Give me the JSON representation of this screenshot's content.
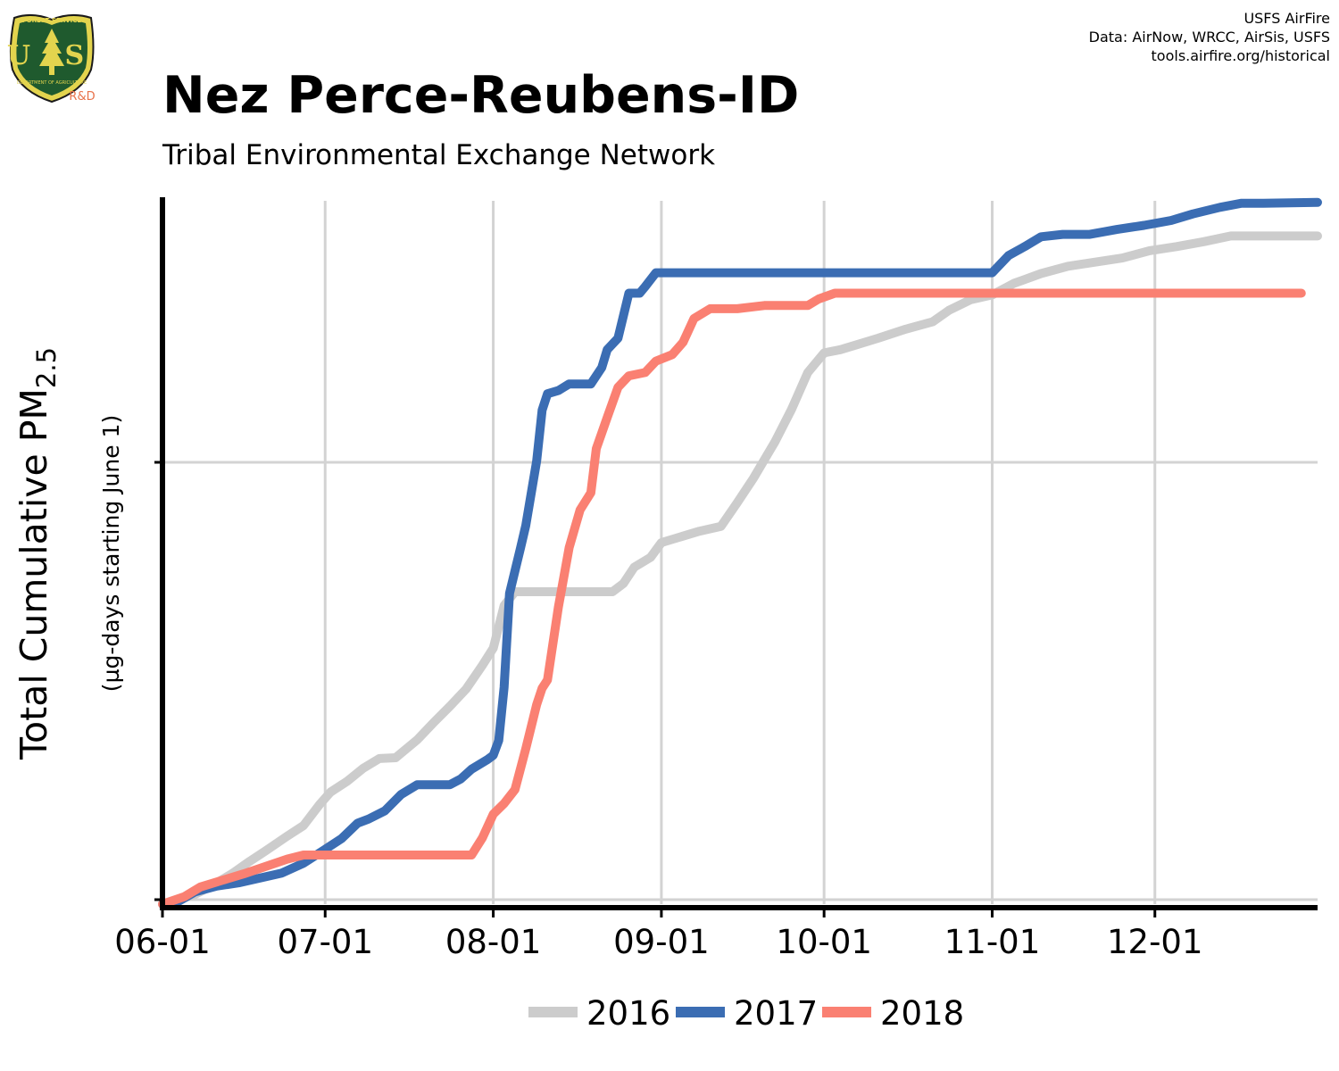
{
  "header": {
    "title": "Nez Perce-Reubens-ID",
    "subtitle": "Tribal Environmental Exchange Network",
    "credits": [
      "USFS AirFire",
      "Data: AirNow, WRCC, AirSis, USFS",
      "tools.airfire.org/historical"
    ]
  },
  "logo": {
    "top_text": "FOREST SERVICE",
    "letters": "U S",
    "bottom_text": "DEPARTMENT OF AGRICULTURE",
    "tag": "R&D"
  },
  "chart_data": {
    "type": "line",
    "xlabel": "",
    "ylabel_main": "Total Cumulative PM",
    "ylabel_sub_script": "2.5",
    "ylabel_units": "(µg-days starting June 1)",
    "x_ticks": [
      "06-01",
      "07-01",
      "08-01",
      "09-01",
      "10-01",
      "11-01",
      "12-01"
    ],
    "x_tick_days": [
      0,
      30,
      61,
      92,
      122,
      153,
      183
    ],
    "xlim_days": [
      0,
      213
    ],
    "y_tick_count": 2,
    "grid": true,
    "legend_position": "bottom",
    "colors": {
      "2016": "#cccccc",
      "2017": "#3b6db3",
      "2018": "#fa8072"
    },
    "series": [
      {
        "name": "2016",
        "color": "#cccccc",
        "points": [
          [
            "06-01",
            0
          ],
          [
            "06-04",
            0.55
          ],
          [
            "06-07",
            1.2
          ],
          [
            "06-10",
            2.2
          ],
          [
            "06-14",
            3.8
          ],
          [
            "06-17",
            5.2
          ],
          [
            "06-20",
            6.5
          ],
          [
            "06-24",
            8.3
          ],
          [
            "06-27",
            9.6
          ],
          [
            "06-30",
            12.2
          ],
          [
            "07-02",
            13.7
          ],
          [
            "07-05",
            15.0
          ],
          [
            "07-08",
            16.6
          ],
          [
            "07-11",
            17.8
          ],
          [
            "07-14",
            17.9
          ],
          [
            "07-18",
            20.1
          ],
          [
            "07-21",
            22.2
          ],
          [
            "07-24",
            24.2
          ],
          [
            "07-27",
            26.3
          ],
          [
            "07-30",
            29.2
          ],
          [
            "08-01",
            31.3
          ],
          [
            "08-03",
            36.5
          ],
          [
            "08-05",
            38.2
          ],
          [
            "08-09",
            38.2
          ],
          [
            "08-14",
            38.2
          ],
          [
            "08-19",
            38.2
          ],
          [
            "08-23",
            38.2
          ],
          [
            "08-25",
            39.2
          ],
          [
            "08-27",
            41.2
          ],
          [
            "08-30",
            42.4
          ],
          [
            "09-01",
            44.2
          ],
          [
            "09-04",
            44.8
          ],
          [
            "09-08",
            45.6
          ],
          [
            "09-12",
            46.2
          ],
          [
            "09-15",
            49.1
          ],
          [
            "09-18",
            52.1
          ],
          [
            "09-22",
            56.6
          ],
          [
            "09-25",
            60.5
          ],
          [
            "09-28",
            65.0
          ],
          [
            "10-01",
            67.4
          ],
          [
            "10-04",
            67.8
          ],
          [
            "10-07",
            68.4
          ],
          [
            "10-11",
            69.2
          ],
          [
            "10-16",
            70.3
          ],
          [
            "10-21",
            71.2
          ],
          [
            "10-24",
            72.6
          ],
          [
            "10-28",
            73.9
          ],
          [
            "11-01",
            74.5
          ],
          [
            "11-05",
            75.9
          ],
          [
            "11-10",
            77.1
          ],
          [
            "11-15",
            78.0
          ],
          [
            "11-20",
            78.5
          ],
          [
            "11-25",
            79.0
          ],
          [
            "11-30",
            79.9
          ],
          [
            "12-05",
            80.4
          ],
          [
            "12-10",
            81.0
          ],
          [
            "12-15",
            81.7
          ],
          [
            "12-21",
            81.7
          ],
          [
            "12-31",
            81.7
          ]
        ]
      },
      {
        "name": "2017",
        "color": "#3b6db3",
        "points": [
          [
            "06-01",
            0
          ],
          [
            "06-04",
            0.35
          ],
          [
            "06-07",
            1.5
          ],
          [
            "06-11",
            2.2
          ],
          [
            "06-15",
            2.6
          ],
          [
            "06-19",
            3.2
          ],
          [
            "06-23",
            3.8
          ],
          [
            "06-27",
            5.0
          ],
          [
            "07-01",
            6.7
          ],
          [
            "07-04",
            8.0
          ],
          [
            "07-07",
            9.9
          ],
          [
            "07-09",
            10.4
          ],
          [
            "07-12",
            11.4
          ],
          [
            "07-15",
            13.4
          ],
          [
            "07-18",
            14.6
          ],
          [
            "07-21",
            14.6
          ],
          [
            "07-24",
            14.6
          ],
          [
            "07-26",
            15.3
          ],
          [
            "07-28",
            16.5
          ],
          [
            "07-31",
            17.7
          ],
          [
            "08-01",
            18.2
          ],
          [
            "08-02",
            20.0
          ],
          [
            "08-03",
            26.5
          ],
          [
            "08-04",
            38.0
          ],
          [
            "08-06",
            43.5
          ],
          [
            "08-07",
            46.3
          ],
          [
            "08-09",
            54.2
          ],
          [
            "08-10",
            60.4
          ],
          [
            "08-11",
            62.4
          ],
          [
            "08-13",
            62.8
          ],
          [
            "08-15",
            63.6
          ],
          [
            "08-19",
            63.6
          ],
          [
            "08-21",
            65.6
          ],
          [
            "08-22",
            67.8
          ],
          [
            "08-24",
            69.2
          ],
          [
            "08-26",
            74.7
          ],
          [
            "08-28",
            74.7
          ],
          [
            "08-29",
            75.5
          ],
          [
            "08-31",
            77.2
          ],
          [
            "09-05",
            77.2
          ],
          [
            "09-15",
            77.2
          ],
          [
            "09-25",
            77.2
          ],
          [
            "10-05",
            77.2
          ],
          [
            "10-15",
            77.2
          ],
          [
            "10-25",
            77.2
          ],
          [
            "11-01",
            77.2
          ],
          [
            "11-04",
            79.3
          ],
          [
            "11-07",
            80.4
          ],
          [
            "11-10",
            81.6
          ],
          [
            "11-14",
            81.9
          ],
          [
            "11-19",
            81.9
          ],
          [
            "11-24",
            82.5
          ],
          [
            "11-29",
            83.0
          ],
          [
            "12-04",
            83.6
          ],
          [
            "12-08",
            84.4
          ],
          [
            "12-13",
            85.2
          ],
          [
            "12-17",
            85.7
          ],
          [
            "12-21",
            85.7
          ],
          [
            "12-31",
            85.8
          ]
        ]
      },
      {
        "name": "2018",
        "color": "#fa8072",
        "points": [
          [
            "06-01",
            0
          ],
          [
            "06-05",
            0.9
          ],
          [
            "06-08",
            2.1
          ],
          [
            "06-12",
            2.9
          ],
          [
            "06-16",
            3.7
          ],
          [
            "06-20",
            4.6
          ],
          [
            "06-24",
            5.5
          ],
          [
            "06-27",
            6.0
          ],
          [
            "07-01",
            6.0
          ],
          [
            "07-05",
            6.0
          ],
          [
            "07-15",
            6.0
          ],
          [
            "07-25",
            6.0
          ],
          [
            "07-28",
            6.0
          ],
          [
            "07-30",
            8.1
          ],
          [
            "08-01",
            11.0
          ],
          [
            "08-03",
            12.3
          ],
          [
            "08-05",
            14.0
          ],
          [
            "08-07",
            19.0
          ],
          [
            "08-09",
            24.4
          ],
          [
            "08-10",
            26.4
          ],
          [
            "08-11",
            27.4
          ],
          [
            "08-13",
            36.3
          ],
          [
            "08-15",
            43.6
          ],
          [
            "08-17",
            48.2
          ],
          [
            "08-19",
            50.3
          ],
          [
            "08-20",
            55.7
          ],
          [
            "08-22",
            59.5
          ],
          [
            "08-24",
            63.2
          ],
          [
            "08-26",
            64.6
          ],
          [
            "08-29",
            65.0
          ],
          [
            "08-31",
            66.4
          ],
          [
            "09-03",
            67.2
          ],
          [
            "09-05",
            68.7
          ],
          [
            "09-07",
            71.6
          ],
          [
            "09-10",
            72.8
          ],
          [
            "09-15",
            72.8
          ],
          [
            "09-20",
            73.2
          ],
          [
            "09-25",
            73.2
          ],
          [
            "09-28",
            73.2
          ],
          [
            "09-30",
            74.0
          ],
          [
            "10-03",
            74.7
          ],
          [
            "10-08",
            74.7
          ],
          [
            "10-18",
            74.7
          ],
          [
            "10-28",
            74.7
          ],
          [
            "11-07",
            74.7
          ],
          [
            "11-17",
            74.7
          ],
          [
            "11-27",
            74.7
          ],
          [
            "12-07",
            74.7
          ],
          [
            "12-17",
            74.7
          ],
          [
            "12-28",
            74.7
          ]
        ]
      }
    ]
  }
}
